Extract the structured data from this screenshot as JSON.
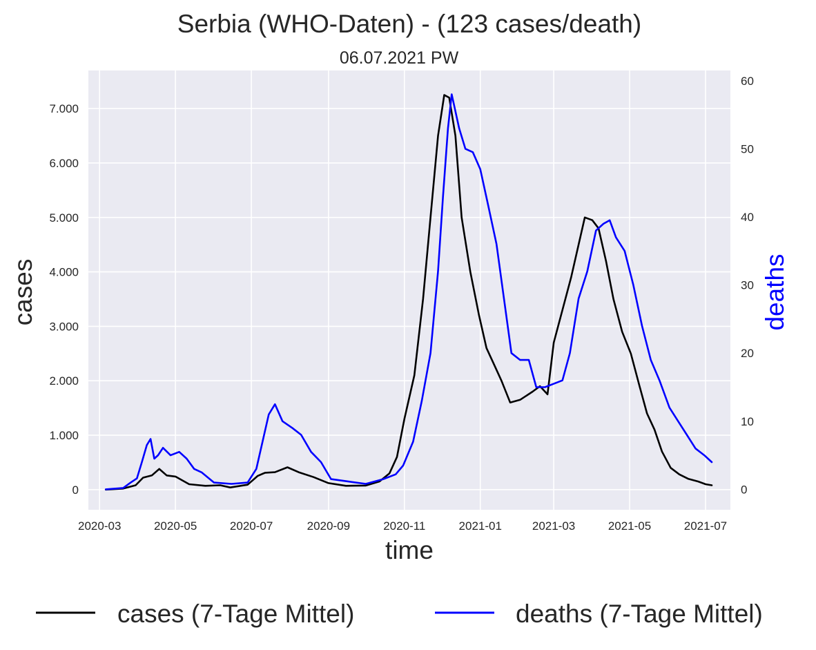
{
  "chart_data": {
    "type": "line",
    "title": "Serbia (WHO-Daten) - (123 cases/death)",
    "subtitle": "06.07.2021 PW",
    "xlabel": "time",
    "ylabel": "cases",
    "y2label": "deaths",
    "x_range": [
      "2020-02-21",
      "2021-07-21"
    ],
    "ylim": [
      -370,
      7700
    ],
    "y2lim": [
      -3,
      61.5
    ],
    "x_ticks": [
      "2020-03",
      "2020-05",
      "2020-07",
      "2020-09",
      "2020-11",
      "2021-01",
      "2021-03",
      "2021-05",
      "2021-07"
    ],
    "x_tick_dates": [
      "2020-03-01",
      "2020-05-01",
      "2020-07-01",
      "2020-09-01",
      "2020-11-01",
      "2021-01-01",
      "2021-03-01",
      "2021-05-01",
      "2021-07-01"
    ],
    "y_ticks": [
      0,
      1000,
      2000,
      3000,
      4000,
      5000,
      6000,
      7000
    ],
    "y_tick_labels": [
      "0",
      "1.000",
      "2.000",
      "3.000",
      "4.000",
      "5.000",
      "6.000",
      "7.000"
    ],
    "y2_ticks": [
      0,
      10,
      20,
      30,
      40,
      50,
      60
    ],
    "y2_tick_labels": [
      "0",
      "10",
      "20",
      "30",
      "40",
      "50",
      "60"
    ],
    "grid": true,
    "legend": "bottom",
    "series": [
      {
        "name": "cases (7-Tage Mittel)",
        "axis": "left",
        "color": "#000000",
        "points": [
          [
            "2020-03-06",
            0
          ],
          [
            "2020-03-20",
            20
          ],
          [
            "2020-03-30",
            80
          ],
          [
            "2020-04-05",
            220
          ],
          [
            "2020-04-12",
            260
          ],
          [
            "2020-04-18",
            380
          ],
          [
            "2020-04-24",
            260
          ],
          [
            "2020-05-01",
            240
          ],
          [
            "2020-05-12",
            100
          ],
          [
            "2020-05-25",
            70
          ],
          [
            "2020-06-06",
            80
          ],
          [
            "2020-06-14",
            40
          ],
          [
            "2020-06-28",
            90
          ],
          [
            "2020-07-06",
            250
          ],
          [
            "2020-07-12",
            310
          ],
          [
            "2020-07-20",
            320
          ],
          [
            "2020-07-30",
            410
          ],
          [
            "2020-08-08",
            320
          ],
          [
            "2020-08-20",
            230
          ],
          [
            "2020-09-01",
            120
          ],
          [
            "2020-09-15",
            70
          ],
          [
            "2020-10-01",
            75
          ],
          [
            "2020-10-12",
            150
          ],
          [
            "2020-10-20",
            300
          ],
          [
            "2020-10-26",
            600
          ],
          [
            "2020-11-01",
            1300
          ],
          [
            "2020-11-09",
            2100
          ],
          [
            "2020-11-16",
            3500
          ],
          [
            "2020-11-22",
            5000
          ],
          [
            "2020-11-28",
            6500
          ],
          [
            "2020-12-03",
            7250
          ],
          [
            "2020-12-07",
            7200
          ],
          [
            "2020-12-12",
            6500
          ],
          [
            "2020-12-17",
            5000
          ],
          [
            "2020-12-24",
            4000
          ],
          [
            "2020-12-31",
            3200
          ],
          [
            "2021-01-06",
            2600
          ],
          [
            "2021-01-12",
            2300
          ],
          [
            "2021-01-18",
            2000
          ],
          [
            "2021-01-25",
            1600
          ],
          [
            "2021-02-02",
            1650
          ],
          [
            "2021-02-12",
            1800
          ],
          [
            "2021-02-18",
            1900
          ],
          [
            "2021-02-24",
            1750
          ],
          [
            "2021-03-01",
            2700
          ],
          [
            "2021-03-08",
            3300
          ],
          [
            "2021-03-15",
            3900
          ],
          [
            "2021-03-21",
            4500
          ],
          [
            "2021-03-26",
            5000
          ],
          [
            "2021-04-01",
            4950
          ],
          [
            "2021-04-06",
            4800
          ],
          [
            "2021-04-12",
            4200
          ],
          [
            "2021-04-18",
            3500
          ],
          [
            "2021-04-25",
            2900
          ],
          [
            "2021-05-02",
            2500
          ],
          [
            "2021-05-09",
            1900
          ],
          [
            "2021-05-15",
            1400
          ],
          [
            "2021-05-21",
            1100
          ],
          [
            "2021-05-27",
            700
          ],
          [
            "2021-06-03",
            400
          ],
          [
            "2021-06-10",
            280
          ],
          [
            "2021-06-17",
            200
          ],
          [
            "2021-06-25",
            150
          ],
          [
            "2021-07-01",
            100
          ],
          [
            "2021-07-06",
            80
          ]
        ]
      },
      {
        "name": "deaths (7-Tage Mittel)",
        "axis": "right",
        "color": "#0000ff",
        "points": [
          [
            "2020-03-06",
            0
          ],
          [
            "2020-03-20",
            0.2
          ],
          [
            "2020-03-26",
            1.0
          ],
          [
            "2020-03-31",
            1.6
          ],
          [
            "2020-04-04",
            4.0
          ],
          [
            "2020-04-08",
            6.5
          ],
          [
            "2020-04-11",
            7.4
          ],
          [
            "2020-04-14",
            4.5
          ],
          [
            "2020-04-17",
            5.0
          ],
          [
            "2020-04-21",
            6.1
          ],
          [
            "2020-04-27",
            5.0
          ],
          [
            "2020-05-04",
            5.5
          ],
          [
            "2020-05-10",
            4.5
          ],
          [
            "2020-05-16",
            3.0
          ],
          [
            "2020-05-22",
            2.5
          ],
          [
            "2020-06-01",
            1.0
          ],
          [
            "2020-06-15",
            0.8
          ],
          [
            "2020-06-28",
            1.0
          ],
          [
            "2020-07-05",
            3.0
          ],
          [
            "2020-07-10",
            7.0
          ],
          [
            "2020-07-15",
            11.0
          ],
          [
            "2020-07-20",
            12.5
          ],
          [
            "2020-07-26",
            10.0
          ],
          [
            "2020-08-03",
            9.0
          ],
          [
            "2020-08-10",
            8.0
          ],
          [
            "2020-08-18",
            5.5
          ],
          [
            "2020-08-26",
            4.0
          ],
          [
            "2020-09-03",
            1.5
          ],
          [
            "2020-09-15",
            1.2
          ],
          [
            "2020-10-01",
            0.8
          ],
          [
            "2020-10-15",
            1.5
          ],
          [
            "2020-10-25",
            2.2
          ],
          [
            "2020-10-31",
            3.5
          ],
          [
            "2020-11-08",
            7.0
          ],
          [
            "2020-11-15",
            13.0
          ],
          [
            "2020-11-22",
            20.0
          ],
          [
            "2020-11-28",
            32.0
          ],
          [
            "2020-12-02",
            43.0
          ],
          [
            "2020-12-06",
            53.0
          ],
          [
            "2020-12-09",
            58.0
          ],
          [
            "2020-12-15",
            53.0
          ],
          [
            "2020-12-20",
            50.0
          ],
          [
            "2020-12-26",
            49.5
          ],
          [
            "2021-01-01",
            47.0
          ],
          [
            "2021-01-07",
            42.0
          ],
          [
            "2021-01-14",
            36.0
          ],
          [
            "2021-01-20",
            28.0
          ],
          [
            "2021-01-26",
            20.0
          ],
          [
            "2021-02-02",
            19.0
          ],
          [
            "2021-02-09",
            19.0
          ],
          [
            "2021-02-15",
            15.0
          ],
          [
            "2021-02-22",
            15.0
          ],
          [
            "2021-03-01",
            15.5
          ],
          [
            "2021-03-08",
            16.0
          ],
          [
            "2021-03-14",
            20.0
          ],
          [
            "2021-03-21",
            28.0
          ],
          [
            "2021-03-28",
            32.0
          ],
          [
            "2021-04-04",
            38.0
          ],
          [
            "2021-04-10",
            39.0
          ],
          [
            "2021-04-15",
            39.5
          ],
          [
            "2021-04-20",
            37.0
          ],
          [
            "2021-04-27",
            35.0
          ],
          [
            "2021-05-04",
            30.0
          ],
          [
            "2021-05-11",
            24.0
          ],
          [
            "2021-05-18",
            19.0
          ],
          [
            "2021-05-25",
            16.0
          ],
          [
            "2021-06-02",
            12.0
          ],
          [
            "2021-06-09",
            10.0
          ],
          [
            "2021-06-16",
            8.0
          ],
          [
            "2021-06-23",
            6.0
          ],
          [
            "2021-06-30",
            5.0
          ],
          [
            "2021-07-06",
            4.0
          ]
        ]
      }
    ]
  }
}
